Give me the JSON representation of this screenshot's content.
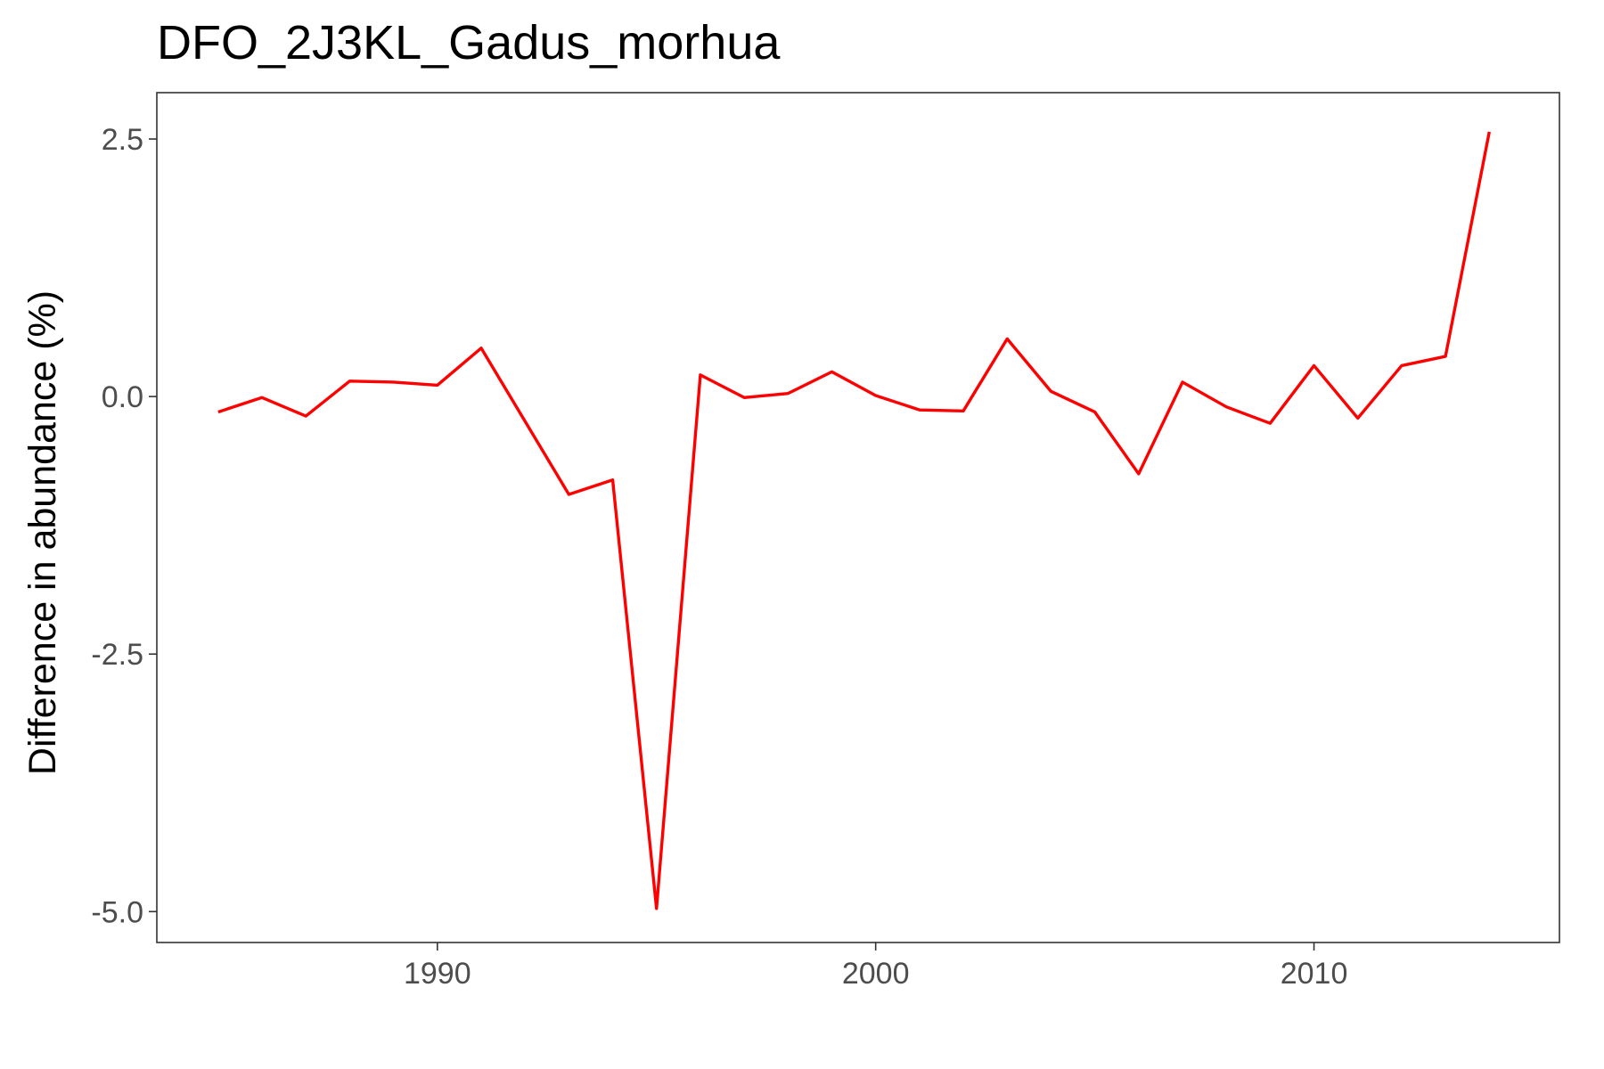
{
  "chart_data": {
    "type": "line",
    "title": "DFO_2J3KL_Gadus_morhua",
    "xlabel": "",
    "ylabel": "Difference in abundance (%)",
    "xlim": [
      1983.6,
      2015.6
    ],
    "ylim": [
      -5.3,
      2.95
    ],
    "x_ticks": [
      1990,
      2000,
      2010
    ],
    "x_tick_labels": [
      "1990",
      "2000",
      "2010"
    ],
    "y_ticks": [
      2.5,
      0.0,
      -2.5,
      -5.0
    ],
    "y_tick_labels": [
      "2.5",
      "0.0",
      "-2.5",
      "-5.0"
    ],
    "grid": false,
    "legend": "none",
    "line_color": "#ff0000",
    "series": [
      {
        "x": [
          1985,
          1986,
          1987,
          1988,
          1989,
          1990,
          1991,
          1992,
          1993,
          1994,
          1995,
          1996,
          1997,
          1998,
          1999,
          2000,
          2001,
          2002,
          2003,
          2004,
          2005,
          2006,
          2007,
          2008,
          2009,
          2010,
          2011,
          2012,
          2013,
          2014
        ],
        "values": [
          -0.15,
          -0.01,
          -0.19,
          0.15,
          0.14,
          0.11,
          0.47,
          -0.24,
          -0.95,
          -0.81,
          -4.97,
          0.21,
          -0.01,
          0.03,
          0.24,
          0.01,
          -0.13,
          -0.14,
          0.56,
          0.05,
          -0.15,
          -0.75,
          0.14,
          -0.1,
          -0.26,
          0.3,
          -0.21,
          0.3,
          0.39,
          2.57
        ]
      }
    ]
  }
}
